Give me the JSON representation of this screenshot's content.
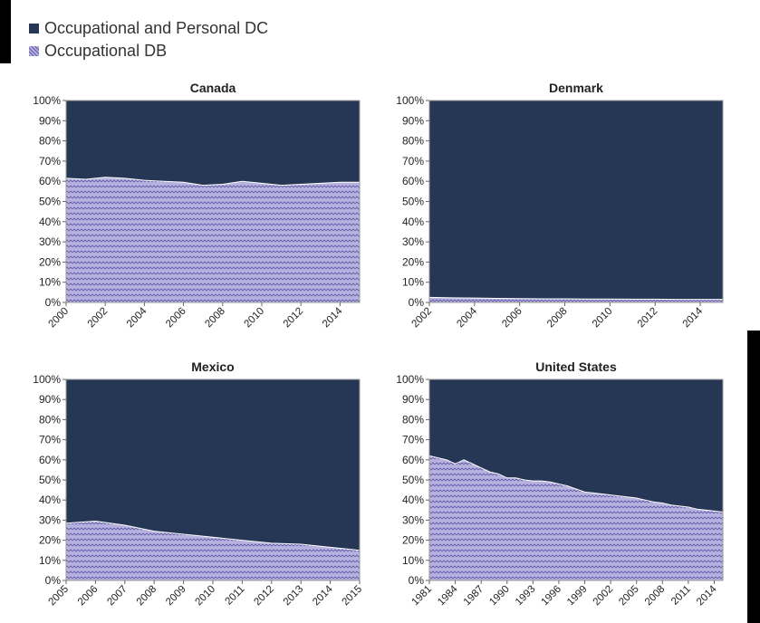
{
  "colors": {
    "dc": "#253754",
    "db_fill": "#b7b1df",
    "db_line": "#5f5aa6",
    "frame": "#999999"
  },
  "legend": [
    {
      "label": "Occupational and Personal DC",
      "swatch": "dc"
    },
    {
      "label": "Occupational DB",
      "swatch": "db"
    }
  ],
  "chart_data": [
    {
      "type": "area",
      "title": "Canada",
      "x": [
        2000,
        2001,
        2002,
        2003,
        2004,
        2005,
        2006,
        2007,
        2008,
        2009,
        2010,
        2011,
        2012,
        2013,
        2014,
        2015
      ],
      "x_ticks": [
        "2000",
        "2002",
        "2004",
        "2006",
        "2008",
        "2010",
        "2012",
        "2014"
      ],
      "y_ticks": [
        "0%",
        "10%",
        "20%",
        "30%",
        "40%",
        "50%",
        "60%",
        "70%",
        "80%",
        "90%",
        "100%"
      ],
      "ylim": [
        0,
        100
      ],
      "stacked_percent": true,
      "series": [
        {
          "name": "Occupational DB",
          "values": [
            61.5,
            61.0,
            62.0,
            61.5,
            60.5,
            60.0,
            59.5,
            58.0,
            58.5,
            60.0,
            59.0,
            58.0,
            58.5,
            59.0,
            59.5,
            59.5
          ]
        },
        {
          "name": "Occupational and Personal DC",
          "values": [
            38.5,
            39.0,
            38.0,
            38.5,
            39.5,
            40.0,
            40.5,
            42.0,
            41.5,
            40.0,
            41.0,
            42.0,
            41.5,
            41.0,
            40.5,
            40.5
          ]
        }
      ]
    },
    {
      "type": "area",
      "title": "Denmark",
      "x": [
        2002,
        2003,
        2004,
        2005,
        2006,
        2007,
        2008,
        2009,
        2010,
        2011,
        2012,
        2013,
        2014,
        2015
      ],
      "x_ticks": [
        "2002",
        "2004",
        "2006",
        "2008",
        "2010",
        "2012",
        "2014"
      ],
      "y_ticks": [
        "0%",
        "10%",
        "20%",
        "30%",
        "40%",
        "50%",
        "60%",
        "70%",
        "80%",
        "90%",
        "100%"
      ],
      "ylim": [
        0,
        100
      ],
      "stacked_percent": true,
      "series": [
        {
          "name": "Occupational DB",
          "values": [
            2.5,
            2.3,
            2.2,
            2.0,
            1.9,
            1.8,
            1.8,
            1.7,
            1.7,
            1.6,
            1.6,
            1.5,
            1.5,
            1.5
          ]
        },
        {
          "name": "Occupational and Personal DC",
          "values": [
            97.5,
            97.7,
            97.8,
            98.0,
            98.1,
            98.2,
            98.2,
            98.3,
            98.3,
            98.4,
            98.4,
            98.5,
            98.5,
            98.5
          ]
        }
      ]
    },
    {
      "type": "area",
      "title": "Mexico",
      "x": [
        2005,
        2006,
        2007,
        2008,
        2009,
        2010,
        2011,
        2012,
        2013,
        2014,
        2015
      ],
      "x_ticks": [
        "2005",
        "2006",
        "2007",
        "2008",
        "2009",
        "2010",
        "2011",
        "2012",
        "2013",
        "2014",
        "2015"
      ],
      "y_ticks": [
        "0%",
        "10%",
        "20%",
        "30%",
        "40%",
        "50%",
        "60%",
        "70%",
        "80%",
        "90%",
        "100%"
      ],
      "ylim": [
        0,
        100
      ],
      "stacked_percent": true,
      "series": [
        {
          "name": "Occupational DB",
          "values": [
            28.5,
            29.5,
            27.5,
            24.5,
            23.0,
            21.5,
            20.0,
            18.5,
            18.0,
            16.5,
            15.0
          ]
        },
        {
          "name": "Occupational and Personal DC",
          "values": [
            71.5,
            70.5,
            72.5,
            75.5,
            77.0,
            78.5,
            80.0,
            81.5,
            82.0,
            83.5,
            85.0
          ]
        }
      ]
    },
    {
      "type": "area",
      "title": "United States",
      "x": [
        1981,
        1982,
        1983,
        1984,
        1985,
        1986,
        1987,
        1988,
        1989,
        1990,
        1991,
        1992,
        1993,
        1994,
        1995,
        1996,
        1997,
        1998,
        1999,
        2000,
        2001,
        2002,
        2003,
        2004,
        2005,
        2006,
        2007,
        2008,
        2009,
        2010,
        2011,
        2012,
        2013,
        2014,
        2015
      ],
      "x_ticks": [
        "1981",
        "1984",
        "1987",
        "1990",
        "1993",
        "1996",
        "1999",
        "2002",
        "2005",
        "2008",
        "2011",
        "2014"
      ],
      "y_ticks": [
        "0%",
        "10%",
        "20%",
        "30%",
        "40%",
        "50%",
        "60%",
        "70%",
        "80%",
        "90%",
        "100%"
      ],
      "ylim": [
        0,
        100
      ],
      "stacked_percent": true,
      "series": [
        {
          "name": "Occupational DB",
          "values": [
            62,
            61,
            60,
            58,
            60,
            58,
            56,
            54,
            53,
            51,
            51,
            50,
            49.5,
            49.5,
            49,
            48,
            47,
            45.5,
            44,
            43.5,
            43,
            42.5,
            42,
            41.5,
            41,
            40,
            39,
            38.5,
            37.5,
            37,
            36.5,
            35.5,
            35,
            34.5,
            34
          ]
        },
        {
          "name": "Occupational and Personal DC",
          "values": [
            38,
            39,
            40,
            42,
            40,
            42,
            44,
            46,
            47,
            49,
            49,
            50,
            50.5,
            50.5,
            51,
            52,
            53,
            54.5,
            56,
            56.5,
            57,
            57.5,
            58,
            58.5,
            59,
            60,
            61,
            61.5,
            62.5,
            63,
            63.5,
            64.5,
            65,
            65.5,
            66
          ]
        }
      ]
    }
  ]
}
